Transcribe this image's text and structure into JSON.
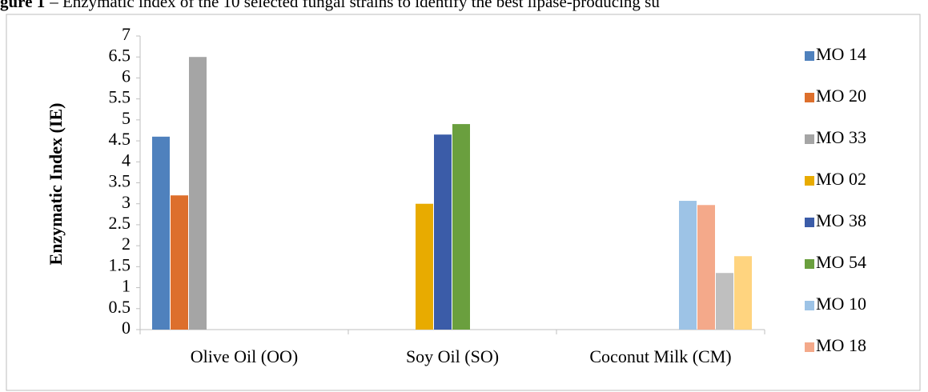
{
  "chart_data": {
    "type": "bar",
    "title_label": "gure 1",
    "title": "– Enzymatic index of the 10 selected fungal strains to identify the best lipase-producing su",
    "y_label": "Enzymatic Index (IE)",
    "categories": [
      "Olive Oil (OO)",
      "Soy Oil (SO)",
      "Coconut Milk (CM)"
    ],
    "series": [
      {
        "name": "MO 14",
        "color": "#4f81bd",
        "values": [
          4.6,
          null,
          null
        ]
      },
      {
        "name": "MO 20",
        "color": "#dd6f2c",
        "values": [
          3.2,
          null,
          null
        ]
      },
      {
        "name": "MO 33",
        "color": "#a5a5a5",
        "values": [
          6.5,
          null,
          null
        ]
      },
      {
        "name": "MO 02",
        "color": "#e8ab00",
        "values": [
          null,
          3.0,
          null
        ]
      },
      {
        "name": "MO 38",
        "color": "#3b5ca8",
        "values": [
          null,
          4.65,
          null
        ]
      },
      {
        "name": "MO 54",
        "color": "#6a9f3e",
        "values": [
          null,
          4.9,
          null
        ]
      },
      {
        "name": "MO 10",
        "color": "#9dc3e6",
        "values": [
          null,
          null,
          3.07
        ]
      },
      {
        "name": "MO 18",
        "color": "#f4a98a",
        "values": [
          null,
          null,
          2.97
        ]
      },
      {
        "name": null,
        "color": "#bfbfbf",
        "values": [
          null,
          null,
          1.35
        ]
      },
      {
        "name": null,
        "color": "#ffd47f",
        "values": [
          null,
          null,
          1.75
        ]
      }
    ],
    "ylim": [
      0,
      7
    ],
    "yticks": [
      0,
      0.5,
      1,
      1.5,
      2,
      2.5,
      3,
      3.5,
      4,
      4.5,
      5,
      5.5,
      6,
      6.5,
      7
    ],
    "grid": false
  }
}
